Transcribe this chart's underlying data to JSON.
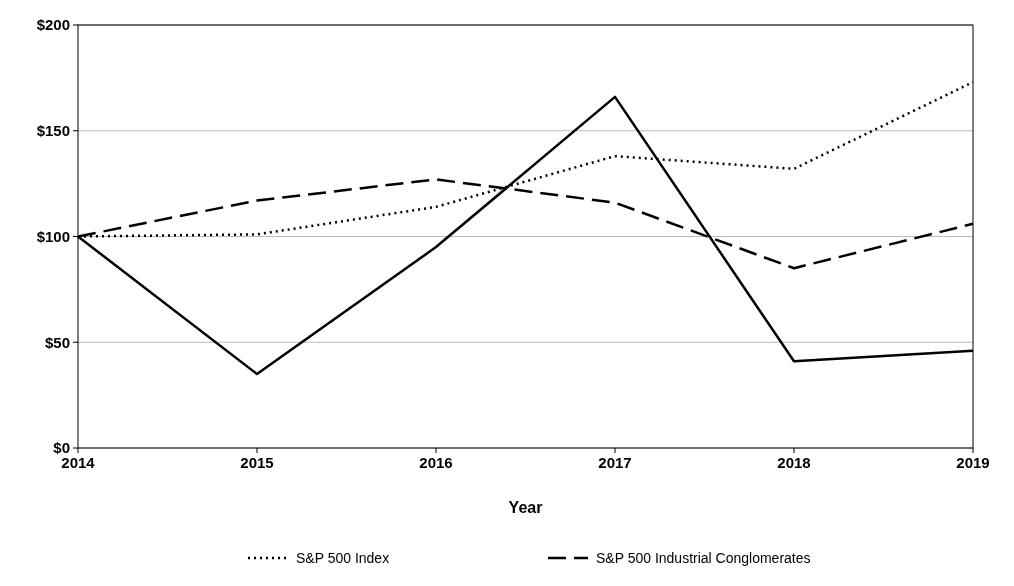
{
  "chart_data": {
    "type": "line",
    "xlabel": "Year",
    "x": [
      2014,
      2015,
      2016,
      2017,
      2018,
      2019
    ],
    "xlim": [
      2014,
      2019
    ],
    "xticks": [
      2014,
      2015,
      2016,
      2017,
      2018,
      2019
    ],
    "ylim": [
      0,
      200
    ],
    "yticks": [
      {
        "value": 0,
        "label": "$0"
      },
      {
        "value": 50,
        "label": "$50"
      },
      {
        "value": 100,
        "label": "$100"
      },
      {
        "value": 150,
        "label": "$150"
      },
      {
        "value": 200,
        "label": "$200"
      }
    ],
    "grid": "y",
    "legend": "bottom",
    "series": [
      {
        "name": "S&P 500 Index",
        "color": "#000000",
        "line_style": "dotted",
        "values": [
          100,
          101,
          114,
          138,
          132,
          173
        ]
      },
      {
        "name": "S&P 500 Industrial Conglomerates",
        "color": "#000000",
        "line_style": "dashed",
        "values": [
          100,
          117,
          127,
          116,
          85,
          106
        ]
      },
      {
        "color": "#000000",
        "line_style": "solid",
        "values": [
          100,
          35,
          95,
          166,
          41,
          46
        ]
      }
    ]
  }
}
